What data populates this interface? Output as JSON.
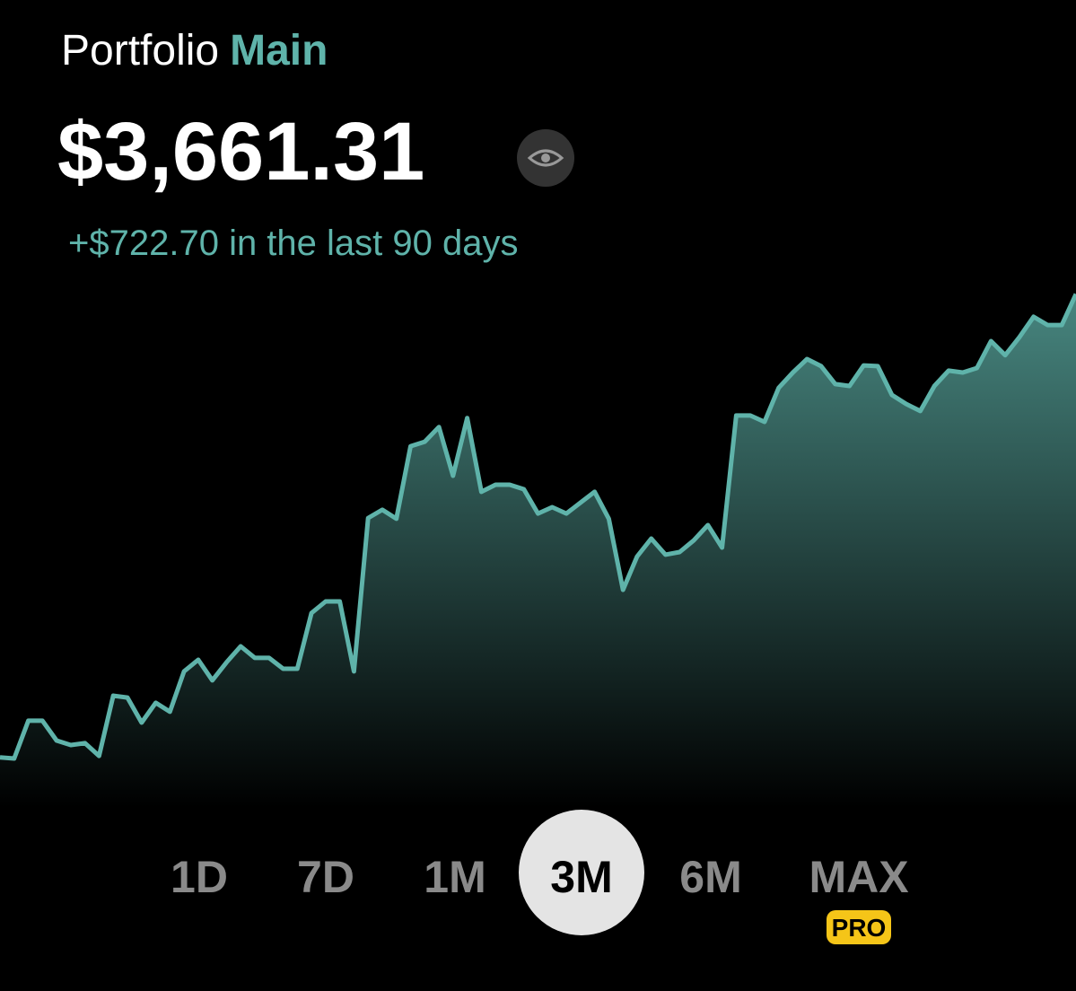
{
  "header": {
    "title": "Portfolio",
    "portfolio_name": "Main",
    "balance": "$3,661.31",
    "change": "+$722.70 in the last 90 days"
  },
  "chart_data": {
    "type": "line",
    "color": "#5fb3aa",
    "fill": "area",
    "values": [
      2938.61,
      2937,
      2996,
      2996,
      2965,
      2958,
      2961,
      2941,
      3035,
      3032,
      2993,
      3024,
      3010,
      3073,
      3091,
      3059,
      3087,
      3112,
      3094,
      3094,
      3077,
      3077,
      3164,
      3182,
      3182,
      3073,
      3312,
      3325,
      3311,
      3424,
      3431,
      3454,
      3378,
      3468,
      3353,
      3364,
      3364,
      3357,
      3319,
      3329,
      3319,
      3336,
      3353,
      3311,
      3200,
      3252,
      3280,
      3255,
      3259,
      3277,
      3301,
      3266,
      3472,
      3472,
      3462,
      3515,
      3539,
      3560,
      3549,
      3521,
      3518,
      3550,
      3549,
      3504,
      3490,
      3479,
      3518,
      3542,
      3539,
      3546,
      3588,
      3566,
      3594,
      3626,
      3613,
      3613,
      3661.31
    ],
    "ylim": [
      2860,
      3700
    ]
  },
  "ranges": [
    {
      "label": "1D",
      "selected": false
    },
    {
      "label": "7D",
      "selected": false
    },
    {
      "label": "1M",
      "selected": false
    },
    {
      "label": "3M",
      "selected": true
    },
    {
      "label": "6M",
      "selected": false
    },
    {
      "label": "MAX",
      "selected": false,
      "badge": "PRO"
    }
  ]
}
